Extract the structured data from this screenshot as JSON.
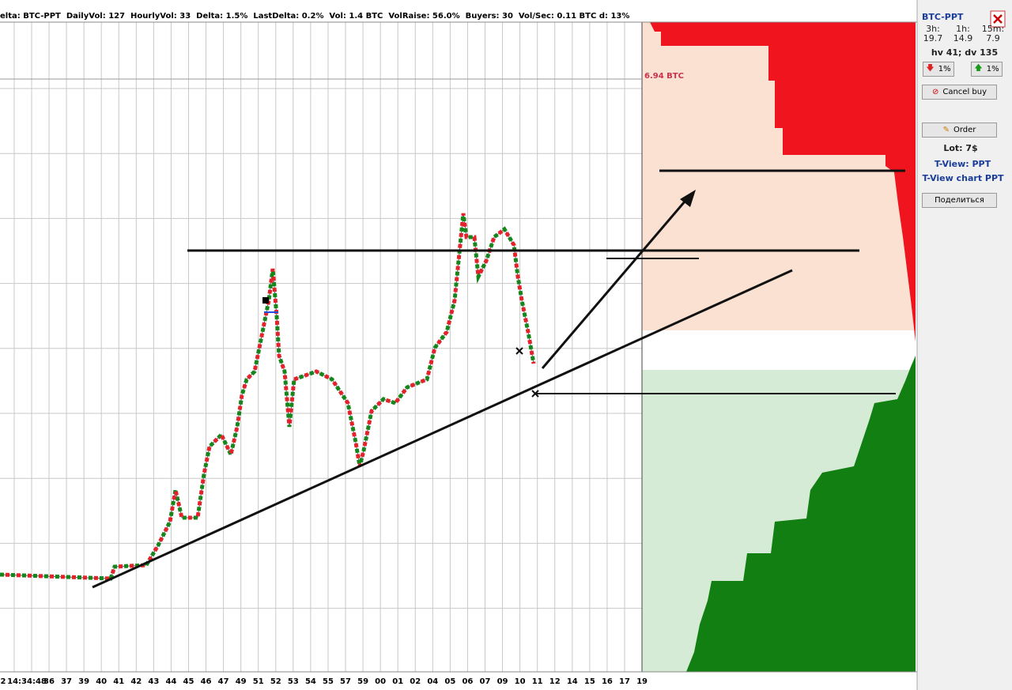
{
  "header": {
    "text": "elta: BTC-PPT  DailyVol: 127  HourlyVol: 33  Delta: 1.5%  LastDelta: 0.2%  Vol: 1.4 BTC  VolRaise: 56.0%  Buyers: 30  Vol/Sec: 0.11 BTC d: 13%"
  },
  "chart": {
    "depth_label": "6.94 BTC",
    "x_labels": [
      "2",
      "14:34:48",
      "36",
      "37",
      "39",
      "40",
      "41",
      "42",
      "43",
      "44",
      "45",
      "46",
      "47",
      "49",
      "51",
      "52",
      "53",
      "54",
      "55",
      "57",
      "59",
      "00",
      "01",
      "02",
      "04",
      "05",
      "06",
      "07",
      "09",
      "10",
      "11",
      "12",
      "14",
      "15",
      "16",
      "17",
      "19"
    ]
  },
  "panel": {
    "symbol": "BTC-PPT",
    "stats": [
      {
        "label": "3h:",
        "value": 19.7
      },
      {
        "label": "1h:",
        "value": 14.9
      },
      {
        "label": "15m:",
        "value": 7.9
      }
    ],
    "volume": "hv 41; dv 135",
    "down_button": "1%",
    "up_button": "1%",
    "cancel_button": "Cancel buy",
    "order_button": "Order",
    "lot": "Lot: 7$",
    "tview": "T-View: PPT",
    "tview_chart": "T-View chart PPT",
    "share_button": "Поделиться"
  }
}
